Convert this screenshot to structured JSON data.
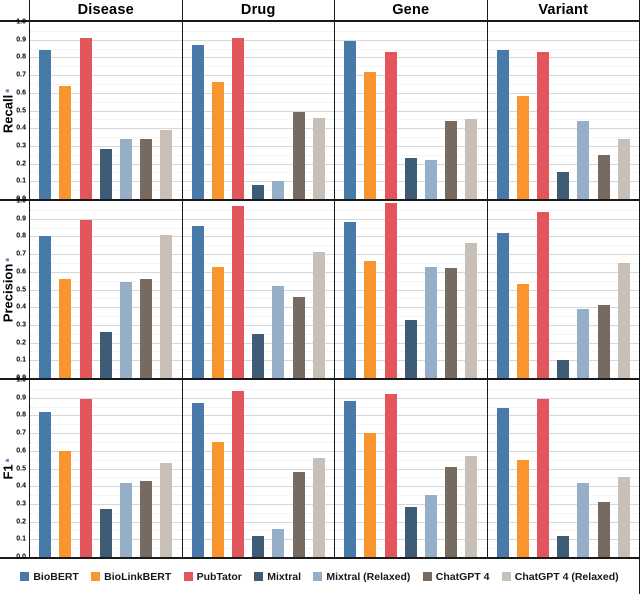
{
  "axis": {
    "tick_labels": [
      "1.0",
      "0.9",
      "0.8",
      "0.7",
      "0.6",
      "0.5",
      "0.4",
      "0.3",
      "0.2",
      "0.1",
      "0.0"
    ],
    "metric_star": "*"
  },
  "chart_data": {
    "type": "bar",
    "title": "",
    "categories": [
      "Disease",
      "Drug",
      "Gene",
      "Variant"
    ],
    "row_metrics": [
      "Recall",
      "Precision",
      "F1"
    ],
    "metric_keys": [
      "recall",
      "precision",
      "f1"
    ],
    "ylim": [
      0,
      1
    ],
    "ytick_step": 0.1,
    "grid": "on",
    "legend_position": "bottom",
    "series": [
      {
        "name": "BioBERT",
        "color": "#4779A9",
        "recall": [
          0.84,
          0.87,
          0.89,
          0.84
        ],
        "precision": [
          0.8,
          0.86,
          0.88,
          0.82
        ],
        "f1": [
          0.82,
          0.87,
          0.88,
          0.84
        ]
      },
      {
        "name": "BioLinkBERT",
        "color": "#F8952F",
        "recall": [
          0.64,
          0.66,
          0.72,
          0.58
        ],
        "precision": [
          0.56,
          0.63,
          0.66,
          0.53
        ],
        "f1": [
          0.6,
          0.65,
          0.7,
          0.55
        ]
      },
      {
        "name": "PubTator",
        "color": "#E2555A",
        "recall": [
          0.91,
          0.91,
          0.83,
          0.83
        ],
        "precision": [
          0.89,
          0.97,
          0.99,
          0.94
        ],
        "f1": [
          0.89,
          0.94,
          0.92,
          0.89
        ]
      },
      {
        "name": "Mixtral",
        "color": "#3E5C76",
        "recall": [
          0.28,
          0.08,
          0.23,
          0.15
        ],
        "precision": [
          0.26,
          0.25,
          0.33,
          0.1
        ],
        "f1": [
          0.27,
          0.12,
          0.28,
          0.12
        ]
      },
      {
        "name": "Mixtral (Relaxed)",
        "color": "#94AFC7",
        "recall": [
          0.34,
          0.1,
          0.22,
          0.44
        ],
        "precision": [
          0.54,
          0.52,
          0.63,
          0.39
        ],
        "f1": [
          0.42,
          0.16,
          0.35,
          0.42
        ]
      },
      {
        "name": "ChatGPT 4",
        "color": "#766A61",
        "recall": [
          0.34,
          0.49,
          0.44,
          0.25
        ],
        "precision": [
          0.56,
          0.46,
          0.62,
          0.41
        ],
        "f1": [
          0.43,
          0.48,
          0.51,
          0.31
        ]
      },
      {
        "name": "ChatGPT 4 (Relaxed)",
        "color": "#C8BFB6",
        "recall": [
          0.39,
          0.46,
          0.45,
          0.34
        ],
        "precision": [
          0.81,
          0.71,
          0.76,
          0.65
        ],
        "f1": [
          0.53,
          0.56,
          0.57,
          0.45
        ]
      }
    ]
  }
}
